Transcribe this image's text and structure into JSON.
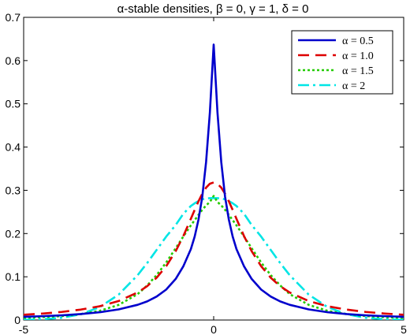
{
  "chart_data": {
    "type": "line",
    "title": "α-stable densities, β = 0, γ = 1, δ = 0",
    "xlabel": "",
    "ylabel": "",
    "xlim": [
      -5,
      5
    ],
    "ylim": [
      0,
      0.7
    ],
    "x_ticks": [
      -5,
      0,
      5
    ],
    "y_ticks": [
      0,
      0.1,
      0.2,
      0.3,
      0.4,
      0.5,
      0.6,
      0.7
    ],
    "x_tick_labels": [
      "-5",
      "0",
      "5"
    ],
    "y_tick_labels": [
      "0",
      "0.1",
      "0.2",
      "0.3",
      "0.4",
      "0.5",
      "0.6",
      "0.7"
    ],
    "grid": false,
    "legend_position": "top-right",
    "x": [
      -5,
      -4.5,
      -4,
      -3.5,
      -3,
      -2.5,
      -2,
      -1.75,
      -1.5,
      -1.25,
      -1,
      -0.8,
      -0.6,
      -0.5,
      -0.4,
      -0.3,
      -0.2,
      -0.1,
      0,
      0.1,
      0.2,
      0.3,
      0.4,
      0.5,
      0.6,
      0.8,
      1,
      1.25,
      1.5,
      1.75,
      2,
      2.5,
      3,
      3.5,
      4,
      4.5,
      5
    ],
    "series": [
      {
        "name": "α = 0.5",
        "color": "#0000cc",
        "dash": "solid",
        "values": [
          0.0074,
          0.0089,
          0.0109,
          0.0138,
          0.018,
          0.0246,
          0.0352,
          0.0431,
          0.0543,
          0.0704,
          0.095,
          0.124,
          0.164,
          0.193,
          0.232,
          0.285,
          0.365,
          0.48,
          0.637,
          0.48,
          0.365,
          0.285,
          0.232,
          0.193,
          0.164,
          0.124,
          0.095,
          0.0704,
          0.0543,
          0.0431,
          0.0352,
          0.0246,
          0.018,
          0.0138,
          0.0109,
          0.0089,
          0.0074
        ]
      },
      {
        "name": "α = 1.0",
        "color": "#dd0000",
        "dash": "dashed",
        "values": [
          0.0122,
          0.015,
          0.0187,
          0.0241,
          0.0318,
          0.0439,
          0.0637,
          0.0783,
          0.0979,
          0.1244,
          0.1592,
          0.1938,
          0.2341,
          0.2546,
          0.2744,
          0.292,
          0.3061,
          0.3152,
          0.3183,
          0.3152,
          0.3061,
          0.292,
          0.2744,
          0.2546,
          0.2341,
          0.1938,
          0.1592,
          0.1244,
          0.0979,
          0.0783,
          0.0637,
          0.0439,
          0.0318,
          0.0241,
          0.0187,
          0.015,
          0.0122
        ]
      },
      {
        "name": "α = 1.5",
        "color": "#22cc00",
        "dash": "dotted",
        "values": [
          0.005,
          0.0066,
          0.0092,
          0.0136,
          0.0212,
          0.035,
          0.06,
          0.08,
          0.104,
          0.133,
          0.166,
          0.193,
          0.219,
          0.231,
          0.243,
          0.255,
          0.265,
          0.273,
          0.287,
          0.273,
          0.265,
          0.255,
          0.243,
          0.231,
          0.219,
          0.193,
          0.166,
          0.133,
          0.104,
          0.08,
          0.06,
          0.035,
          0.0212,
          0.0136,
          0.0092,
          0.0066,
          0.005
        ]
      },
      {
        "name": "α = 2",
        "color": "#00e5e5",
        "dash": "dashdot",
        "values": [
          0.0005,
          0.0018,
          0.0052,
          0.0133,
          0.0297,
          0.0588,
          0.1038,
          0.1318,
          0.1622,
          0.1928,
          0.2197,
          0.2455,
          0.2638,
          0.27,
          0.275,
          0.279,
          0.2812,
          0.2817,
          0.2821,
          0.2817,
          0.2812,
          0.279,
          0.275,
          0.27,
          0.2638,
          0.2455,
          0.2197,
          0.1928,
          0.1622,
          0.1318,
          0.1038,
          0.0588,
          0.0297,
          0.0133,
          0.0052,
          0.0018,
          0.0005
        ]
      }
    ]
  }
}
